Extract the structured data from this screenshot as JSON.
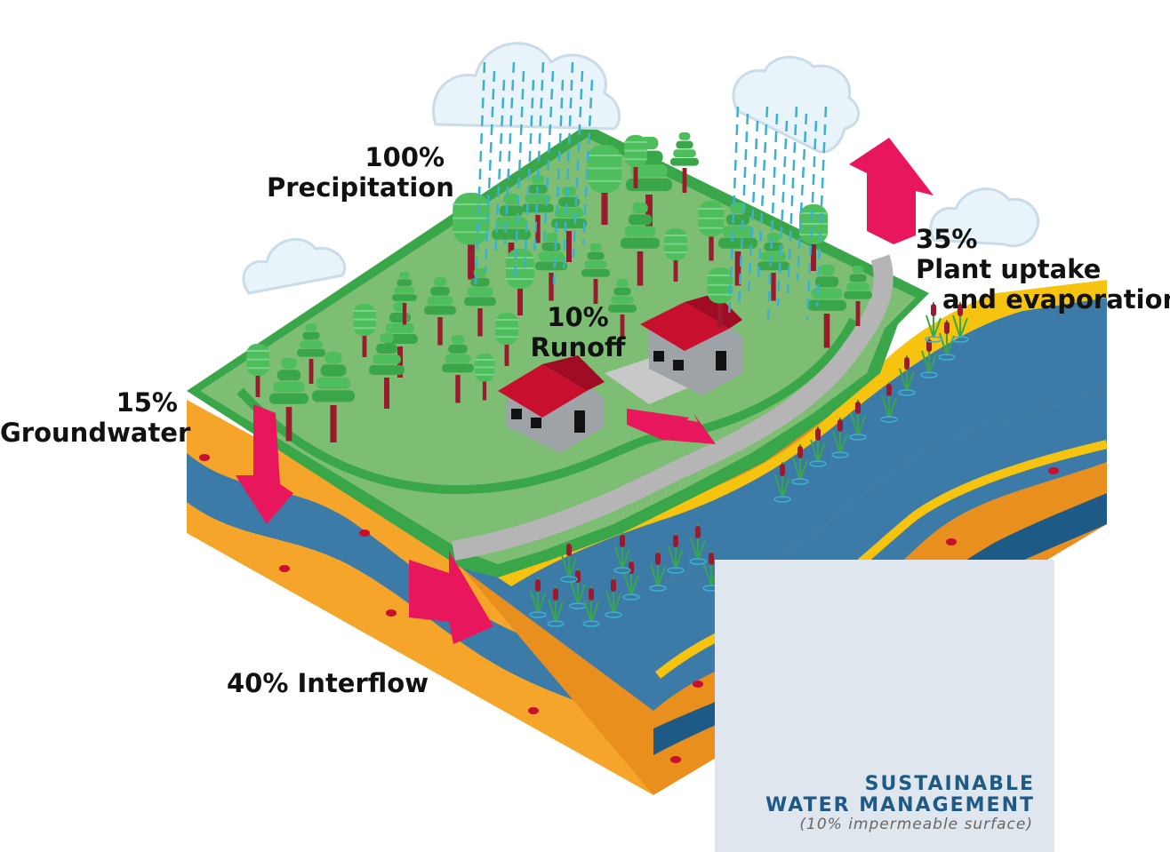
{
  "labels": {
    "precipitation_pct": "100%",
    "precipitation": "Precipitation",
    "plant_uptake_pct": "35%",
    "plant_uptake_line1": "Plant uptake",
    "plant_uptake_line2": "and evaporation",
    "runoff_pct": "10%",
    "runoff": "Runoff",
    "groundwater_pct": "15%",
    "groundwater": "Groundwater",
    "interflow": "40% Interflow"
  },
  "panel": {
    "title_line1": "SUSTAINABLE",
    "title_line2": "WATER MANAGEMENT",
    "subtitle": "(10% impermeable surface)"
  },
  "colors": {
    "grass_top": "#7dbd74",
    "grass_edge": "#3aa64a",
    "soil_orange": "#f4a52a",
    "soil_yellow": "#f6c40f",
    "water_blue": "#3c7aa8",
    "water_dark": "#1d5a86",
    "arrow_pink": "#e8175d",
    "roof_red": "#c8102e",
    "tree_green": "#4ebd5b",
    "road_gray": "#b5b5b5",
    "cloud": "#e9f3fa",
    "rain": "#3ab1d0"
  }
}
